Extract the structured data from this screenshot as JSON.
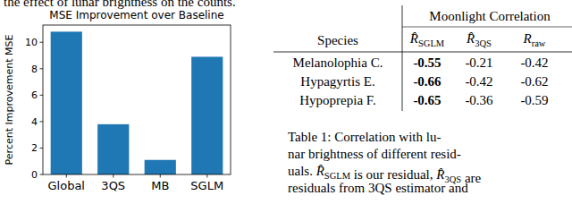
{
  "text": {
    "top": "the effect of lunar brightness on the counts."
  },
  "chart_data": {
    "type": "bar",
    "title": "MSE Improvement over Baseline",
    "y_label": "Percent Improvement MSE",
    "categories": [
      "Global",
      "3QS",
      "MB",
      "SGLM"
    ],
    "values": [
      10.8,
      3.8,
      1.1,
      8.9
    ],
    "color": "#1f77b4",
    "ylim": [
      0,
      11.3
    ],
    "yticks": [
      0,
      2,
      4,
      6,
      8,
      10
    ],
    "grid": false
  },
  "table": {
    "group_header": "Moonlight Correlation",
    "species_header": "Species",
    "columns": [
      {
        "base": "R̂",
        "sub": "SGLM"
      },
      {
        "base": "R̂",
        "sub": "3QS"
      },
      {
        "base": "R",
        "sub": "raw"
      }
    ],
    "rows": [
      {
        "species": "Melanolophia C.",
        "values": [
          -0.55,
          -0.21,
          -0.42
        ]
      },
      {
        "species": "Hypagyrtis E.",
        "values": [
          -0.66,
          -0.42,
          -0.62
        ]
      },
      {
        "species": "Hypoprepia F.",
        "values": [
          -0.65,
          -0.36,
          -0.59
        ]
      }
    ]
  },
  "caption": {
    "lines": [
      [
        "Table 1:  Correlation with lu-"
      ],
      [
        "nar brightness of different resid-"
      ],
      [
        "uals. ",
        {
          "base": "R̂",
          "sub": "SGLM"
        },
        " is our residual, ",
        {
          "base": "R̂",
          "sub": "3QS"
        },
        " are"
      ],
      [
        "residuals from 3QS estimator and"
      ]
    ]
  }
}
